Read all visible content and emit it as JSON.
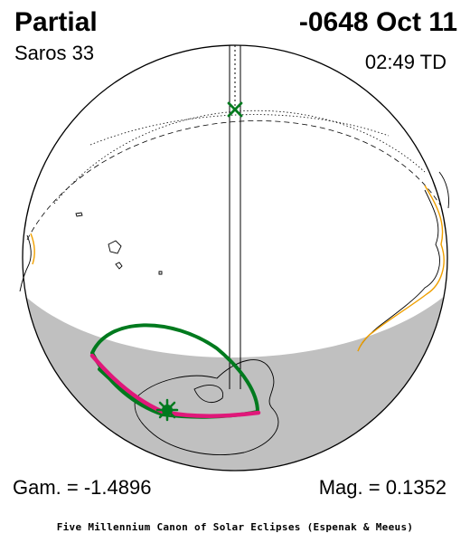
{
  "header": {
    "eclipse_type": "Partial",
    "date": "-0648 Oct 11",
    "saros": "Saros  33",
    "time": "02:49 TD"
  },
  "footer": {
    "gamma": "Gam. = -1.4896",
    "magnitude": "Mag. = 0.1352",
    "credit": "Five Millennium Canon of Solar Eclipses (Espenak & Meeus)"
  },
  "colors": {
    "night_shade": "#c0c0c0",
    "penumbra_outline": "#007a1e",
    "max_eclipse_curve": "#e0187a",
    "coast_highlight": "#f0a000",
    "outline": "#000000"
  },
  "icons": {
    "greatest_eclipse_marker": "green-asterisk-icon",
    "sub_solar_marker": "green-x-icon"
  }
}
